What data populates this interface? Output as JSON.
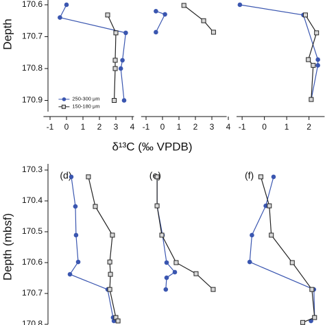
{
  "chart_data": [
    {
      "type": "line",
      "xlabel": "δ¹³C (‰ VPDB)",
      "ylabel": "Depth",
      "xlim": [
        -1.4,
        4.1
      ],
      "xticks": [
        -1,
        0,
        1,
        2,
        3,
        4
      ],
      "ylim": [
        170.585,
        170.935
      ],
      "yticks": [
        170.6,
        170.7,
        170.8,
        170.9
      ],
      "inverted_y": true,
      "legend": "lower left",
      "series": [
        {
          "name": "250-300 μm",
          "color": "#3a56b0",
          "marker": "circle",
          "values": [
            0,
            -0.4,
            3.6,
            3.4,
            3.3,
            3.5
          ],
          "depths": [
            170.6,
            170.64,
            170.688,
            170.774,
            170.8,
            170.9
          ]
        },
        {
          "name": "150-180 μm",
          "color": "#222222",
          "marker": "square",
          "values": [
            2.5,
            3.0,
            2.96,
            2.96,
            2.9
          ],
          "depths": [
            170.632,
            170.688,
            170.774,
            170.8,
            170.9
          ]
        }
      ]
    },
    {
      "type": "line",
      "xlim": [
        -1.3,
        3.9
      ],
      "xticks": [
        -1,
        0,
        1,
        2,
        3,
        4
      ],
      "ylim": [
        170.585,
        170.935
      ],
      "inverted_y": true,
      "series": [
        {
          "color": "#3a56b0",
          "marker": "circle",
          "values": [
            -0.4,
            0.15,
            -0.4
          ],
          "depths": [
            170.62,
            170.63,
            170.686
          ]
        },
        {
          "color": "#222222",
          "marker": "square",
          "values": [
            1.3,
            2.5,
            3.1
          ],
          "depths": [
            170.602,
            170.65,
            170.686
          ]
        }
      ]
    },
    {
      "type": "line",
      "xlim": [
        -1.25,
        2.7
      ],
      "xticks": [
        -1,
        0,
        1,
        2
      ],
      "ylim": [
        170.585,
        170.935
      ],
      "inverted_y": true,
      "series": [
        {
          "color": "#3a56b0",
          "marker": "circle",
          "values": [
            -1.1,
            1.75,
            2.4,
            2.4,
            2.1
          ],
          "depths": [
            170.6,
            170.632,
            170.772,
            170.79,
            170.897
          ]
        },
        {
          "color": "#222222",
          "marker": "square",
          "values": [
            1.84,
            2.34,
            1.97,
            2.19,
            2.1
          ],
          "depths": [
            170.632,
            170.688,
            170.772,
            170.79,
            170.897
          ]
        }
      ]
    },
    {
      "type": "line",
      "panel": "(d)",
      "ylabel": "Depth (mbsf)",
      "xlim": [
        -1.4,
        4.1
      ],
      "ylim": [
        170.28,
        170.8
      ],
      "yticks": [
        170.3,
        170.4,
        170.5,
        170.6,
        170.7,
        170.8
      ],
      "inverted_y": true,
      "series": [
        {
          "color": "#3a56b0",
          "marker": "circle",
          "values": [
            0.29,
            0.54,
            0.58,
            0.71,
            0.21,
            2.5,
            2.83,
            2.88
          ],
          "depths": [
            170.322,
            170.418,
            170.511,
            170.598,
            170.638,
            170.687,
            170.778,
            170.789
          ]
        },
        {
          "color": "#222222",
          "marker": "square",
          "values": [
            1.33,
            1.75,
            2.79,
            2.63,
            2.67,
            2.63,
            3.0,
            3.13
          ],
          "depths": [
            170.322,
            170.418,
            170.511,
            170.598,
            170.638,
            170.687,
            170.778,
            170.789
          ]
        }
      ]
    },
    {
      "type": "line",
      "panel": "(e)",
      "xlim": [
        -1.3,
        3.9
      ],
      "ylim": [
        170.28,
        170.8
      ],
      "inverted_y": true,
      "series": [
        {
          "color": "#3a56b0",
          "marker": "circle",
          "values": [
            -0.33,
            -0.33,
            0,
            0.25,
            0.75,
            0.25,
            0.2
          ],
          "depths": [
            170.322,
            170.416,
            170.511,
            170.6,
            170.631,
            170.649,
            170.687
          ]
        },
        {
          "color": "#222222",
          "marker": "square",
          "values": [
            -0.33,
            -0.33,
            -0.04,
            0.83,
            2.04,
            3.08
          ],
          "depths": [
            170.322,
            170.416,
            170.511,
            170.6,
            170.636,
            170.687
          ]
        }
      ]
    },
    {
      "type": "line",
      "panel": "(f)",
      "xlim": [
        -1.25,
        2.7
      ],
      "ylim": [
        170.28,
        170.8
      ],
      "inverted_y": true,
      "series": [
        {
          "color": "#3a56b0",
          "marker": "circle",
          "values": [
            0.41,
            0.06,
            -0.56,
            -0.66,
            2.22,
            2.25,
            2.09
          ],
          "depths": [
            170.322,
            170.416,
            170.511,
            170.598,
            170.687,
            170.778,
            170.789
          ]
        },
        {
          "color": "#222222",
          "marker": "square",
          "values": [
            -0.16,
            0.22,
            0.31,
            1.25,
            2.13,
            2.25,
            1.72
          ],
          "depths": [
            170.322,
            170.416,
            170.511,
            170.6,
            170.687,
            170.778,
            170.794
          ]
        }
      ]
    }
  ]
}
